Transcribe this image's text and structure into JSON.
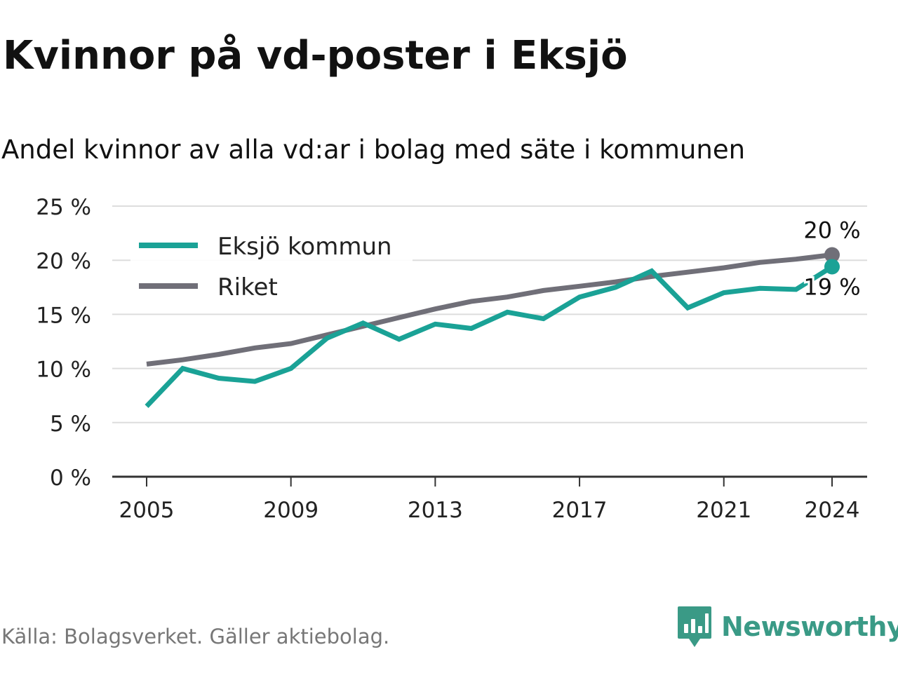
{
  "title": "Kvinnor på vd-poster i Eksjö",
  "subtitle": "Andel kvinnor av alla vd:ar i bolag med säte i kommunen",
  "source": "Källa: Bolagsverket. Gäller aktiebolag.",
  "brand": {
    "name": "Newsworthy",
    "icon": "newsworthy-logo-icon",
    "color": "#3a9a86"
  },
  "chart_data": {
    "type": "line",
    "x": [
      2005,
      2006,
      2007,
      2008,
      2009,
      2010,
      2011,
      2012,
      2013,
      2014,
      2015,
      2016,
      2017,
      2018,
      2019,
      2020,
      2021,
      2022,
      2023,
      2024
    ],
    "x_ticks": [
      2005,
      2009,
      2013,
      2017,
      2021,
      2024
    ],
    "y_ticks": [
      0,
      5,
      10,
      15,
      20,
      25
    ],
    "y_tick_labels": [
      "0 %",
      "5 %",
      "10 %",
      "15 %",
      "20 %",
      "25 %"
    ],
    "ylim": [
      0,
      25
    ],
    "grid": true,
    "legend_position": "top-left",
    "series": [
      {
        "name": "Eksjö kommun",
        "color": "#1aa296",
        "values": [
          6.5,
          10.0,
          9.1,
          8.8,
          10.0,
          12.8,
          14.2,
          12.7,
          14.1,
          13.7,
          15.2,
          14.6,
          16.6,
          17.5,
          19.0,
          15.6,
          17.0,
          17.4,
          17.3,
          19.4
        ],
        "end_label": "19 %"
      },
      {
        "name": "Riket",
        "color": "#706f78",
        "values": [
          10.4,
          10.8,
          11.3,
          11.9,
          12.3,
          13.1,
          13.9,
          14.7,
          15.5,
          16.2,
          16.6,
          17.2,
          17.6,
          18.0,
          18.5,
          18.9,
          19.3,
          19.8,
          20.1,
          20.5
        ],
        "end_label": "20 %"
      }
    ]
  }
}
